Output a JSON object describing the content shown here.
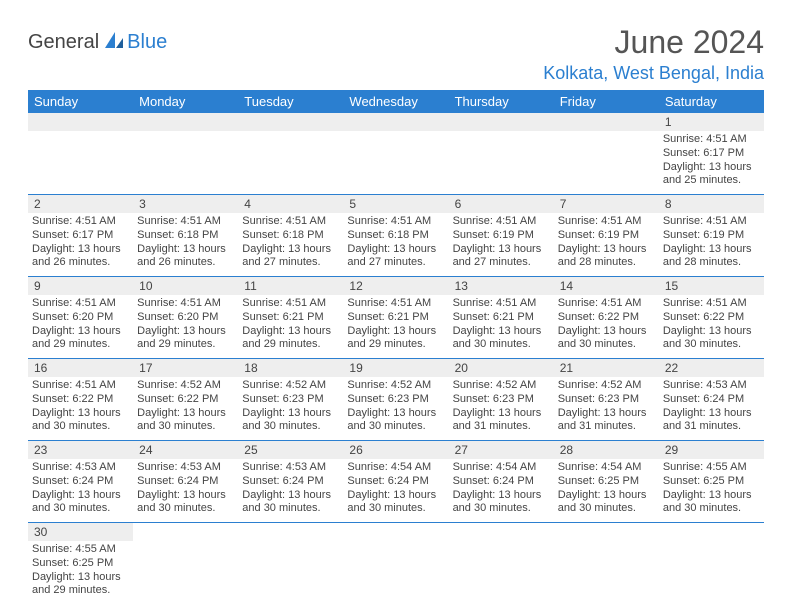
{
  "brand": {
    "part1": "General",
    "part2": "Blue"
  },
  "title": "June 2024",
  "location": "Kolkata, West Bengal, India",
  "colors": {
    "accent": "#2b7fd0",
    "header_bg": "#2b7fd0",
    "header_text": "#ffffff",
    "daynum_bg": "#eeeeee",
    "text": "#444444",
    "border": "#2b7fd0"
  },
  "typography": {
    "title_fontsize": 32,
    "location_fontsize": 18,
    "dayheader_fontsize": 13,
    "daynum_fontsize": 12,
    "body_fontsize": 11
  },
  "layout": {
    "columns": 7,
    "weeks": 6
  },
  "day_headers": [
    "Sunday",
    "Monday",
    "Tuesday",
    "Wednesday",
    "Thursday",
    "Friday",
    "Saturday"
  ],
  "weeks": [
    [
      null,
      null,
      null,
      null,
      null,
      null,
      {
        "n": "1",
        "sunrise": "Sunrise: 4:51 AM",
        "sunset": "Sunset: 6:17 PM",
        "day": "Daylight: 13 hours and 25 minutes."
      }
    ],
    [
      {
        "n": "2",
        "sunrise": "Sunrise: 4:51 AM",
        "sunset": "Sunset: 6:17 PM",
        "day": "Daylight: 13 hours and 26 minutes."
      },
      {
        "n": "3",
        "sunrise": "Sunrise: 4:51 AM",
        "sunset": "Sunset: 6:18 PM",
        "day": "Daylight: 13 hours and 26 minutes."
      },
      {
        "n": "4",
        "sunrise": "Sunrise: 4:51 AM",
        "sunset": "Sunset: 6:18 PM",
        "day": "Daylight: 13 hours and 27 minutes."
      },
      {
        "n": "5",
        "sunrise": "Sunrise: 4:51 AM",
        "sunset": "Sunset: 6:18 PM",
        "day": "Daylight: 13 hours and 27 minutes."
      },
      {
        "n": "6",
        "sunrise": "Sunrise: 4:51 AM",
        "sunset": "Sunset: 6:19 PM",
        "day": "Daylight: 13 hours and 27 minutes."
      },
      {
        "n": "7",
        "sunrise": "Sunrise: 4:51 AM",
        "sunset": "Sunset: 6:19 PM",
        "day": "Daylight: 13 hours and 28 minutes."
      },
      {
        "n": "8",
        "sunrise": "Sunrise: 4:51 AM",
        "sunset": "Sunset: 6:19 PM",
        "day": "Daylight: 13 hours and 28 minutes."
      }
    ],
    [
      {
        "n": "9",
        "sunrise": "Sunrise: 4:51 AM",
        "sunset": "Sunset: 6:20 PM",
        "day": "Daylight: 13 hours and 29 minutes."
      },
      {
        "n": "10",
        "sunrise": "Sunrise: 4:51 AM",
        "sunset": "Sunset: 6:20 PM",
        "day": "Daylight: 13 hours and 29 minutes."
      },
      {
        "n": "11",
        "sunrise": "Sunrise: 4:51 AM",
        "sunset": "Sunset: 6:21 PM",
        "day": "Daylight: 13 hours and 29 minutes."
      },
      {
        "n": "12",
        "sunrise": "Sunrise: 4:51 AM",
        "sunset": "Sunset: 6:21 PM",
        "day": "Daylight: 13 hours and 29 minutes."
      },
      {
        "n": "13",
        "sunrise": "Sunrise: 4:51 AM",
        "sunset": "Sunset: 6:21 PM",
        "day": "Daylight: 13 hours and 30 minutes."
      },
      {
        "n": "14",
        "sunrise": "Sunrise: 4:51 AM",
        "sunset": "Sunset: 6:22 PM",
        "day": "Daylight: 13 hours and 30 minutes."
      },
      {
        "n": "15",
        "sunrise": "Sunrise: 4:51 AM",
        "sunset": "Sunset: 6:22 PM",
        "day": "Daylight: 13 hours and 30 minutes."
      }
    ],
    [
      {
        "n": "16",
        "sunrise": "Sunrise: 4:51 AM",
        "sunset": "Sunset: 6:22 PM",
        "day": "Daylight: 13 hours and 30 minutes."
      },
      {
        "n": "17",
        "sunrise": "Sunrise: 4:52 AM",
        "sunset": "Sunset: 6:22 PM",
        "day": "Daylight: 13 hours and 30 minutes."
      },
      {
        "n": "18",
        "sunrise": "Sunrise: 4:52 AM",
        "sunset": "Sunset: 6:23 PM",
        "day": "Daylight: 13 hours and 30 minutes."
      },
      {
        "n": "19",
        "sunrise": "Sunrise: 4:52 AM",
        "sunset": "Sunset: 6:23 PM",
        "day": "Daylight: 13 hours and 30 minutes."
      },
      {
        "n": "20",
        "sunrise": "Sunrise: 4:52 AM",
        "sunset": "Sunset: 6:23 PM",
        "day": "Daylight: 13 hours and 31 minutes."
      },
      {
        "n": "21",
        "sunrise": "Sunrise: 4:52 AM",
        "sunset": "Sunset: 6:23 PM",
        "day": "Daylight: 13 hours and 31 minutes."
      },
      {
        "n": "22",
        "sunrise": "Sunrise: 4:53 AM",
        "sunset": "Sunset: 6:24 PM",
        "day": "Daylight: 13 hours and 31 minutes."
      }
    ],
    [
      {
        "n": "23",
        "sunrise": "Sunrise: 4:53 AM",
        "sunset": "Sunset: 6:24 PM",
        "day": "Daylight: 13 hours and 30 minutes."
      },
      {
        "n": "24",
        "sunrise": "Sunrise: 4:53 AM",
        "sunset": "Sunset: 6:24 PM",
        "day": "Daylight: 13 hours and 30 minutes."
      },
      {
        "n": "25",
        "sunrise": "Sunrise: 4:53 AM",
        "sunset": "Sunset: 6:24 PM",
        "day": "Daylight: 13 hours and 30 minutes."
      },
      {
        "n": "26",
        "sunrise": "Sunrise: 4:54 AM",
        "sunset": "Sunset: 6:24 PM",
        "day": "Daylight: 13 hours and 30 minutes."
      },
      {
        "n": "27",
        "sunrise": "Sunrise: 4:54 AM",
        "sunset": "Sunset: 6:24 PM",
        "day": "Daylight: 13 hours and 30 minutes."
      },
      {
        "n": "28",
        "sunrise": "Sunrise: 4:54 AM",
        "sunset": "Sunset: 6:25 PM",
        "day": "Daylight: 13 hours and 30 minutes."
      },
      {
        "n": "29",
        "sunrise": "Sunrise: 4:55 AM",
        "sunset": "Sunset: 6:25 PM",
        "day": "Daylight: 13 hours and 30 minutes."
      }
    ],
    [
      {
        "n": "30",
        "sunrise": "Sunrise: 4:55 AM",
        "sunset": "Sunset: 6:25 PM",
        "day": "Daylight: 13 hours and 29 minutes."
      },
      null,
      null,
      null,
      null,
      null,
      null
    ]
  ]
}
